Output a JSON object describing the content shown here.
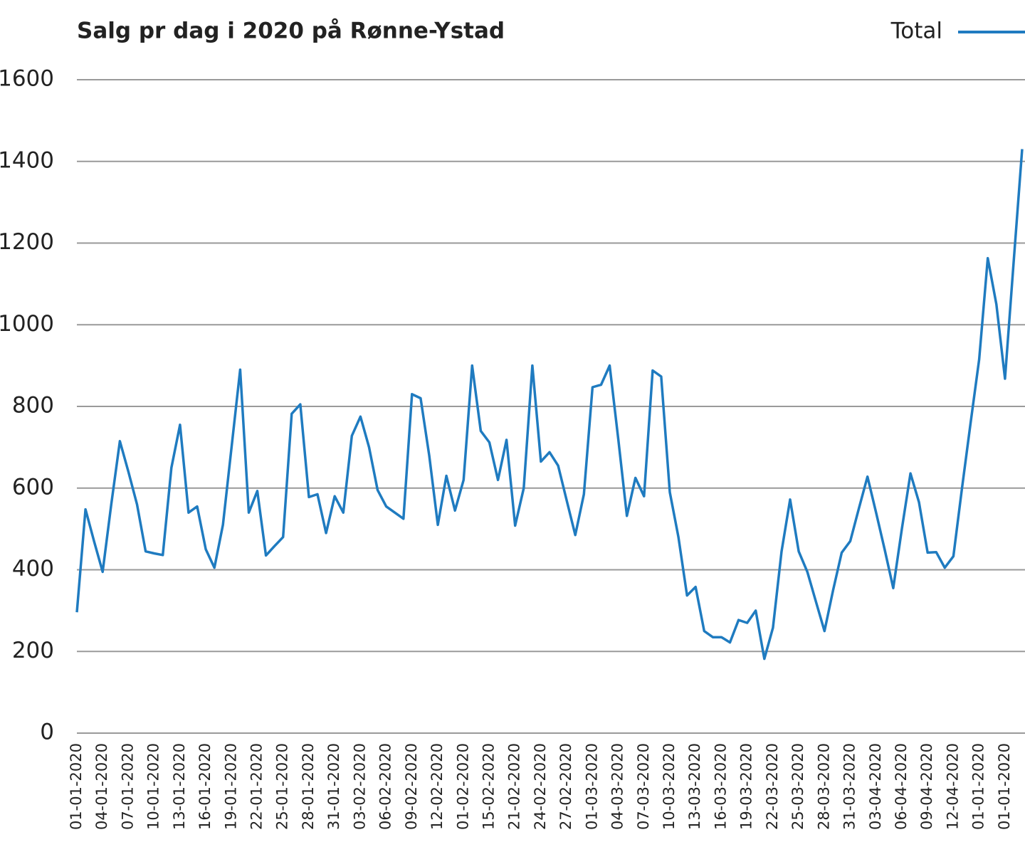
{
  "chart_data": {
    "type": "line",
    "title": "Salg pr dag i 2020 på Rønne-Ystad",
    "categories": [
      "01-01-2020",
      null,
      null,
      "04-01-2020",
      null,
      null,
      "07-01-2020",
      null,
      null,
      "10-01-2020",
      null,
      null,
      "13-01-2020",
      null,
      null,
      "16-01-2020",
      null,
      null,
      "19-01-2020",
      null,
      null,
      "22-01-2020",
      null,
      null,
      "25-01-2020",
      null,
      null,
      "28-01-2020",
      null,
      null,
      "31-01-2020",
      null,
      null,
      "03-02-2020",
      null,
      null,
      "06-02-2020",
      null,
      null,
      "09-02-2020",
      null,
      null,
      "12-02-2020",
      null,
      null,
      "01-02-2020",
      null,
      null,
      "15-02-2020",
      null,
      null,
      "21-02-2020",
      null,
      null,
      "24-02-2020",
      null,
      null,
      "27-02-2020",
      null,
      null,
      "01-03-2020",
      null,
      null,
      "04-03-2020",
      null,
      null,
      "07-03-2020",
      null,
      null,
      "10-03-2020",
      null,
      null,
      "13-03-2020",
      null,
      null,
      "16-03-2020",
      null,
      null,
      "19-03-2020",
      null,
      null,
      "22-03-2020",
      null,
      null,
      "25-03-2020",
      null,
      null,
      "28-03-2020",
      null,
      null,
      "31-03-2020",
      null,
      null,
      "03-04-2020",
      null,
      null,
      "06-04-2020",
      null,
      null,
      "09-04-2020",
      null,
      null,
      "12-04-2020",
      null,
      null,
      "01-01-2020",
      null,
      null,
      "01-01-2020",
      null,
      null
    ],
    "series": [
      {
        "name": "Total",
        "color": "#1f7bc0",
        "values": [
          296,
          548,
          470,
          395,
          560,
          715,
          640,
          560,
          445,
          440,
          436,
          650,
          755,
          540,
          555,
          450,
          405,
          510,
          700,
          890,
          540,
          593,
          435,
          458,
          480,
          782,
          805,
          578,
          585,
          490,
          580,
          540,
          728,
          775,
          700,
          595,
          555,
          540,
          525,
          830,
          820,
          680,
          510,
          630,
          545,
          620,
          900,
          740,
          712,
          620,
          718,
          508,
          600,
          900,
          665,
          688,
          655,
          570,
          485,
          585,
          847,
          853,
          900,
          720,
          532,
          625,
          580,
          888,
          873,
          590,
          480,
          337,
          358,
          250,
          235,
          235,
          222,
          277,
          270,
          300,
          182,
          258,
          445,
          572,
          445,
          395,
          322,
          250,
          350,
          442,
          470,
          550,
          628,
          540,
          450,
          355,
          500,
          636,
          565,
          442,
          443,
          405,
          433,
          600,
          760,
          915,
          1163,
          1050,
          868,
          1150,
          1430
        ]
      }
    ],
    "ylim": [
      0,
      1600
    ],
    "yticks": [
      0,
      200,
      400,
      600,
      800,
      1000,
      1200,
      1400,
      1600
    ],
    "grid": true,
    "legend": "top-right"
  }
}
